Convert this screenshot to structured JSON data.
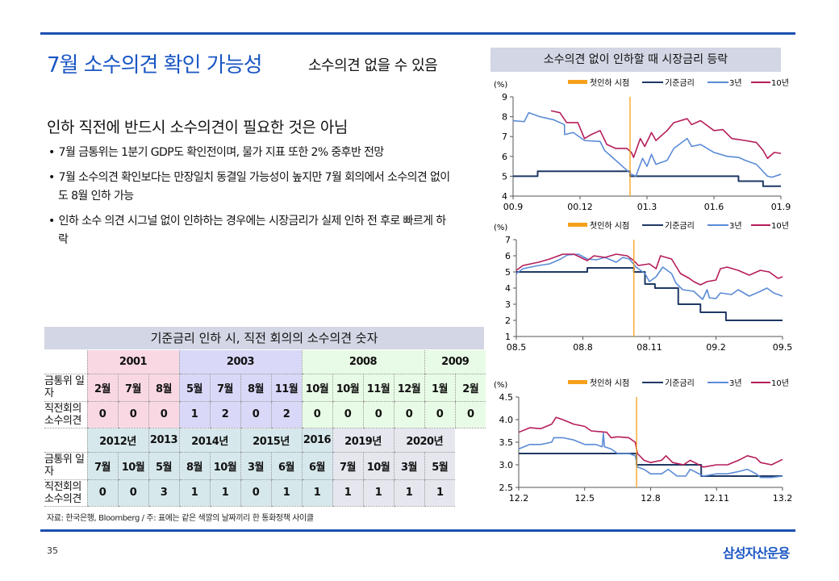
{
  "header": {
    "title": "7월 소수의견 확인 가능성",
    "subtitle": "소수의견 없을 수 있음"
  },
  "left": {
    "heading": "인하 직전에 반드시 소수의견이 필요한 것은 아님",
    "bullets": [
      "7월 금통위는 1분기 GDP도 확인전이며, 물가 지표 또한 2% 중후반 전망",
      "7월 소수의견 확인보다는 만장일치 동결일 가능성이 높지만 7월 회의에서 소수의견 없이도 8월 인하 가능",
      "인하 소수 의견 시그널 없이 인하하는 경우에는 시장금리가 실제 인하 전 후로 빠르게 하락"
    ]
  },
  "table": {
    "title": "기준금리 인하 시, 직전 회의의 소수의견 숫자",
    "row_labels": {
      "date": "금통위 일자",
      "dissent": "직전회의 소수의견"
    },
    "top": {
      "years": [
        {
          "label": "2001",
          "span": 3,
          "c": "c1"
        },
        {
          "label": "2003",
          "span": 4,
          "c": "c2"
        },
        {
          "label": "2008",
          "span": 4,
          "c": "c3"
        },
        {
          "label": "2009",
          "span": 2,
          "c": "c3"
        }
      ],
      "months": [
        "2월",
        "7월",
        "8월",
        "5월",
        "7월",
        "8월",
        "11월",
        "10월",
        "10월",
        "11월",
        "12월",
        "1월",
        "2월"
      ],
      "values": [
        "0",
        "0",
        "0",
        "1",
        "2",
        "0",
        "2",
        "0",
        "0",
        "0",
        "0",
        "0",
        "0"
      ],
      "colors": [
        "c1",
        "c1",
        "c1",
        "c2",
        "c2",
        "c2",
        "c2",
        "c3",
        "c3",
        "c3",
        "c3",
        "c3",
        "c3"
      ]
    },
    "bottom": {
      "years": [
        {
          "label": "2012년",
          "span": 2,
          "c": "c4"
        },
        {
          "label": "2013",
          "span": 1,
          "c": "c4"
        },
        {
          "label": "2014년",
          "span": 2,
          "c": "c4"
        },
        {
          "label": "2015년",
          "span": 2,
          "c": "c4"
        },
        {
          "label": "2016",
          "span": 1,
          "c": "c4"
        },
        {
          "label": "2019년",
          "span": 2,
          "c": "c5"
        },
        {
          "label": "2020년",
          "span": 2,
          "c": "c5"
        }
      ],
      "months": [
        "7월",
        "10월",
        "5월",
        "8월",
        "10월",
        "3월",
        "6월",
        "6월",
        "7월",
        "10월",
        "3월",
        "5월"
      ],
      "values": [
        "0",
        "0",
        "3",
        "1",
        "1",
        "0",
        "1",
        "1",
        "1",
        "1",
        "1",
        "1"
      ],
      "colors": [
        "c4",
        "c4",
        "c4",
        "c4",
        "c4",
        "c4",
        "c4",
        "c4",
        "c5",
        "c5",
        "c5",
        "c5"
      ]
    },
    "source": "자료: 한국은행, Bloomberg / 주: 표에는 같은 색깔의 날짜끼리 한 통화정책 사이클"
  },
  "right": {
    "title": "소수의견 없이 인하할 때 시장금리 등락"
  },
  "footer": {
    "page": "35",
    "brand": "삼성자산운용"
  },
  "chart_data": [
    {
      "type": "line",
      "ylabel": "(%)",
      "ylim": [
        4,
        9
      ],
      "yticks": [
        "4",
        "5",
        "6",
        "7",
        "8",
        "9"
      ],
      "ytick_values": [
        4,
        5,
        6,
        7,
        8,
        9
      ],
      "xlim": [
        0,
        12
      ],
      "xticks": [
        "00.9",
        "00.12",
        "01.3",
        "01.6",
        "01.9"
      ],
      "xtick_values": [
        0,
        3,
        6,
        9,
        12
      ],
      "legend": [
        "첫인하 시점",
        "기준금리",
        "3년",
        "10년"
      ],
      "first_cut_x": 5.24,
      "colors": {
        "cut": "#f5a01a",
        "base": "#1f3864",
        "y3": "#5b8bd6",
        "y10": "#b51d5a"
      },
      "series": [
        {
          "name": "기준금리",
          "step": true,
          "x": [
            0,
            1.1,
            5.24,
            10.1,
            11.2,
            12
          ],
          "y": [
            5.0,
            5.25,
            5.0,
            4.75,
            4.5,
            4.5
          ]
        },
        {
          "name": "3년",
          "x": [
            0,
            0.5,
            0.7,
            1.2,
            1.8,
            2.3,
            2.31,
            2.7,
            3.2,
            3.9,
            4.1,
            4.5,
            5.0,
            5.3,
            5.5,
            5.8,
            6.0,
            6.2,
            6.4,
            6.9,
            7.2,
            7.8,
            8.0,
            8.4,
            9.0,
            9.6,
            10.1,
            10.4,
            10.9,
            11.4,
            11.6,
            12.0
          ],
          "y": [
            7.8,
            7.75,
            8.2,
            8.0,
            7.85,
            7.6,
            7.1,
            7.2,
            6.8,
            6.75,
            6.3,
            5.9,
            5.4,
            5.1,
            5.0,
            5.9,
            5.5,
            6.1,
            5.6,
            5.8,
            6.4,
            6.9,
            6.5,
            6.6,
            6.2,
            6.0,
            5.95,
            5.8,
            5.6,
            5.0,
            4.95,
            5.1
          ]
        },
        {
          "name": "10년",
          "x": [
            1.7,
            2.1,
            2.4,
            2.9,
            3.2,
            3.5,
            3.9,
            4.2,
            4.6,
            5.1,
            5.3,
            5.4,
            5.7,
            5.9,
            6.2,
            6.4,
            6.9,
            7.2,
            7.8,
            8.0,
            8.4,
            9.0,
            9.4,
            9.8,
            10.4,
            10.9,
            11.2,
            11.4,
            11.7,
            12.0
          ],
          "y": [
            8.3,
            8.2,
            7.7,
            7.7,
            6.9,
            7.1,
            7.3,
            6.6,
            6.4,
            6.4,
            6.2,
            5.95,
            6.9,
            6.5,
            7.2,
            6.8,
            7.3,
            7.7,
            7.9,
            7.6,
            7.8,
            7.3,
            7.35,
            6.9,
            6.8,
            6.7,
            6.3,
            5.9,
            6.2,
            6.15
          ]
        }
      ]
    },
    {
      "type": "line",
      "ylabel": "(%)",
      "ylim": [
        1,
        7
      ],
      "yticks": [
        "1",
        "2",
        "3",
        "4",
        "5",
        "6",
        "7"
      ],
      "ytick_values": [
        1,
        2,
        3,
        4,
        5,
        6,
        7
      ],
      "xlim": [
        0,
        12
      ],
      "xticks": [
        "08.5",
        "08.8",
        "08.11",
        "09.2",
        "09.5"
      ],
      "xtick_values": [
        0,
        3,
        6,
        9,
        12
      ],
      "legend": [
        "첫인하 시점",
        "기준금리",
        "3년",
        "10년"
      ],
      "first_cut_x": 5.3,
      "colors": {
        "cut": "#f5a01a",
        "base": "#1f3864",
        "y3": "#5b8bd6",
        "y10": "#b51d5a"
      },
      "series": [
        {
          "name": "기준금리",
          "step": true,
          "x": [
            0,
            3.2,
            5.3,
            5.8,
            6.25,
            7.3,
            8.3,
            9.45,
            12
          ],
          "y": [
            5.0,
            5.25,
            5.0,
            4.25,
            4.0,
            3.0,
            2.5,
            2.0,
            2.0
          ]
        },
        {
          "name": "3년",
          "x": [
            0,
            0.3,
            1,
            1.5,
            2,
            2.3,
            2.8,
            3.2,
            3.6,
            4,
            4.5,
            4.8,
            5.1,
            5.4,
            5.8,
            6,
            6.3,
            6.6,
            7.0,
            7.2,
            7.5,
            8.0,
            8.4,
            8.6,
            8.7,
            9.0,
            9.2,
            9.7,
            10,
            10.5,
            11,
            11.3,
            11.6,
            12
          ],
          "y": [
            4.9,
            5.2,
            5.4,
            5.5,
            5.8,
            6.05,
            6.1,
            5.8,
            5.75,
            5.9,
            5.6,
            5.9,
            5.8,
            5.3,
            4.9,
            4.4,
            4.7,
            5.3,
            4.9,
            4.3,
            3.9,
            3.8,
            3.3,
            3.9,
            3.4,
            3.35,
            3.7,
            3.6,
            3.9,
            3.5,
            3.8,
            4.0,
            3.7,
            3.5
          ]
        },
        {
          "name": "10년",
          "x": [
            0,
            0.3,
            1,
            1.5,
            2.1,
            2.6,
            3.2,
            3.5,
            4,
            4.5,
            5,
            5.3,
            5.5,
            6,
            6.3,
            6.5,
            7,
            7.4,
            7.8,
            8.0,
            8.3,
            8.6,
            9,
            9.2,
            9.5,
            10,
            10.5,
            11,
            11.4,
            11.8,
            12
          ],
          "y": [
            5.1,
            5.4,
            5.6,
            5.8,
            6.1,
            6.1,
            5.7,
            6.0,
            5.9,
            6.1,
            6.0,
            5.7,
            5.4,
            5.5,
            5.2,
            6.0,
            5.8,
            4.9,
            4.6,
            4.4,
            4.2,
            4.4,
            4.5,
            5.2,
            5.3,
            5.1,
            4.8,
            5.1,
            5.0,
            4.6,
            4.7
          ]
        }
      ]
    },
    {
      "type": "line",
      "ylabel": "(%)",
      "ylim": [
        2.5,
        4.5
      ],
      "yticks": [
        "2.5",
        "3.0",
        "3.5",
        "4.0",
        "4.5"
      ],
      "ytick_values": [
        2.5,
        3.0,
        3.5,
        4.0,
        4.5
      ],
      "xlim": [
        0,
        12
      ],
      "xticks": [
        "12.2",
        "12.5",
        "12.8",
        "12.11",
        "13.2"
      ],
      "xtick_values": [
        0,
        3,
        6,
        9,
        12
      ],
      "legend": [
        "첫인하 시점",
        "기준금리",
        "3년",
        "10년"
      ],
      "first_cut_x": 5.36,
      "colors": {
        "cut": "#f5a01a",
        "base": "#1f3864",
        "y3": "#5b8bd6",
        "y10": "#b51d5a"
      },
      "series": [
        {
          "name": "기준금리",
          "step": true,
          "x": [
            0,
            5.36,
            8.3,
            12
          ],
          "y": [
            3.25,
            3.0,
            2.75,
            2.75
          ]
        },
        {
          "name": "3년",
          "x": [
            0,
            0.5,
            1,
            1.5,
            1.6,
            2,
            2.5,
            3,
            3.5,
            3.8,
            3.85,
            3.9,
            4.2,
            4.5,
            5,
            5.3,
            5.4,
            5.7,
            6,
            6.5,
            6.8,
            7.2,
            7.6,
            7.8,
            8.4,
            9,
            9.5,
            10,
            10.4,
            10.8,
            11,
            11.5,
            12
          ],
          "y": [
            3.35,
            3.45,
            3.45,
            3.5,
            3.6,
            3.6,
            3.55,
            3.45,
            3.45,
            3.4,
            3.7,
            3.4,
            3.35,
            3.25,
            3.25,
            3.2,
            2.95,
            2.9,
            2.8,
            2.8,
            2.9,
            2.75,
            2.75,
            2.9,
            2.75,
            2.8,
            2.8,
            2.85,
            2.9,
            2.8,
            2.72,
            2.72,
            2.75
          ]
        },
        {
          "name": "10년",
          "x": [
            0,
            0.5,
            1,
            1.5,
            1.7,
            2,
            2.5,
            3,
            3.3,
            4,
            4.2,
            4.5,
            5,
            5.3,
            5.4,
            5.7,
            6,
            6.5,
            6.7,
            7,
            7.5,
            7.8,
            8.4,
            9,
            9.5,
            10,
            10.4,
            10.8,
            11,
            11.5,
            12
          ],
          "y": [
            3.72,
            3.82,
            3.8,
            3.9,
            4.05,
            4.0,
            3.9,
            3.85,
            3.75,
            3.72,
            3.6,
            3.62,
            3.6,
            3.5,
            3.25,
            3.1,
            3.05,
            3.1,
            3.2,
            3.05,
            3.0,
            3.1,
            2.95,
            3.0,
            3.0,
            3.1,
            3.2,
            3.15,
            3.05,
            3.0,
            3.12
          ]
        }
      ]
    }
  ]
}
